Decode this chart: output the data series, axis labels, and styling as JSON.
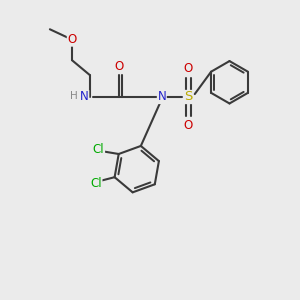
{
  "bg_color": "#ebebeb",
  "bond_color": "#3a3a3a",
  "bond_width": 1.5,
  "atom_colors": {
    "C": "#3a3a3a",
    "H": "#888888",
    "N": "#2222cc",
    "O": "#cc0000",
    "S": "#bbaa00",
    "Cl": "#00aa00"
  },
  "font_size": 8.5,
  "fig_size": [
    3.0,
    3.0
  ],
  "dpi": 100,
  "xlim": [
    0,
    10
  ],
  "ylim": [
    0,
    10
  ]
}
